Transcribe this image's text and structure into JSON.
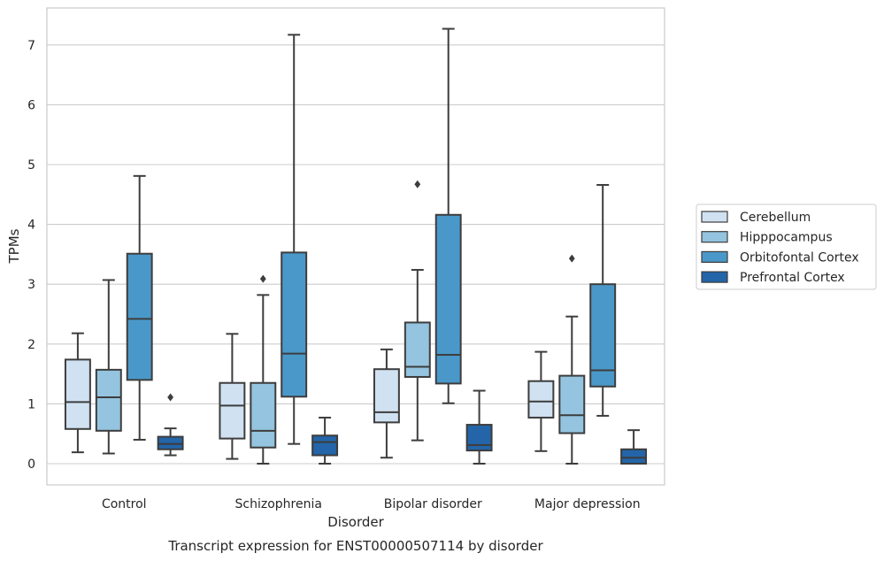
{
  "chart_data": {
    "type": "box",
    "title": "Transcript expression for ENST00000507114 by disorder",
    "xlabel": "Disorder",
    "ylabel": "TPMs",
    "ylim": [
      -0.35,
      7.65
    ],
    "yticks": [
      0,
      1,
      2,
      3,
      4,
      5,
      6,
      7
    ],
    "grid": "horizontal",
    "legend_position": "right",
    "categories": [
      "Control",
      "Schizophrenia",
      "Bipolar disorder",
      "Major depression"
    ],
    "series": [
      {
        "name": "Cerebellum",
        "color": "#d0e1f2",
        "boxes": [
          {
            "min": 0.19,
            "q1": 0.58,
            "median": 1.03,
            "q3": 1.74,
            "max": 2.18,
            "outliers": []
          },
          {
            "min": 0.08,
            "q1": 0.42,
            "median": 0.97,
            "q3": 1.35,
            "max": 2.17,
            "outliers": []
          },
          {
            "min": 0.1,
            "q1": 0.69,
            "median": 0.86,
            "q3": 1.58,
            "max": 1.91,
            "outliers": []
          },
          {
            "min": 0.21,
            "q1": 0.77,
            "median": 1.04,
            "q3": 1.38,
            "max": 1.87,
            "outliers": []
          }
        ]
      },
      {
        "name": "Hipppocampus",
        "color": "#94c4df",
        "boxes": [
          {
            "min": 0.17,
            "q1": 0.55,
            "median": 1.11,
            "q3": 1.57,
            "max": 3.07,
            "outliers": []
          },
          {
            "min": 0.0,
            "q1": 0.27,
            "median": 0.55,
            "q3": 1.35,
            "max": 2.82,
            "outliers": [
              3.09
            ]
          },
          {
            "min": 0.39,
            "q1": 1.45,
            "median": 1.62,
            "q3": 2.36,
            "max": 3.24,
            "outliers": [
              4.67
            ]
          },
          {
            "min": 0.0,
            "q1": 0.51,
            "median": 0.81,
            "q3": 1.47,
            "max": 2.46,
            "outliers": [
              3.43
            ]
          }
        ]
      },
      {
        "name": "Orbitofontal Cortex",
        "color": "#4a98c9",
        "boxes": [
          {
            "min": 0.4,
            "q1": 1.4,
            "median": 2.42,
            "q3": 3.51,
            "max": 4.81,
            "outliers": []
          },
          {
            "min": 0.33,
            "q1": 1.12,
            "median": 1.84,
            "q3": 3.53,
            "max": 7.17,
            "outliers": []
          },
          {
            "min": 1.01,
            "q1": 1.34,
            "median": 1.82,
            "q3": 4.16,
            "max": 7.27,
            "outliers": []
          },
          {
            "min": 0.8,
            "q1": 1.29,
            "median": 1.56,
            "q3": 3.0,
            "max": 4.66,
            "outliers": []
          }
        ]
      },
      {
        "name": "Prefrontal Cortex",
        "color": "#2365a8",
        "boxes": [
          {
            "min": 0.14,
            "q1": 0.24,
            "median": 0.33,
            "q3": 0.45,
            "max": 0.59,
            "outliers": [
              1.11
            ]
          },
          {
            "min": 0.0,
            "q1": 0.14,
            "median": 0.36,
            "q3": 0.47,
            "max": 0.77,
            "outliers": []
          },
          {
            "min": 0.0,
            "q1": 0.22,
            "median": 0.31,
            "q3": 0.65,
            "max": 1.22,
            "outliers": []
          },
          {
            "min": 0.0,
            "q1": 0.0,
            "median": 0.1,
            "q3": 0.24,
            "max": 0.56,
            "outliers": []
          }
        ]
      }
    ]
  },
  "colors": {
    "grid": "#cccccc",
    "frame": "#cccccc",
    "box_edge": "#3d3d3d"
  }
}
